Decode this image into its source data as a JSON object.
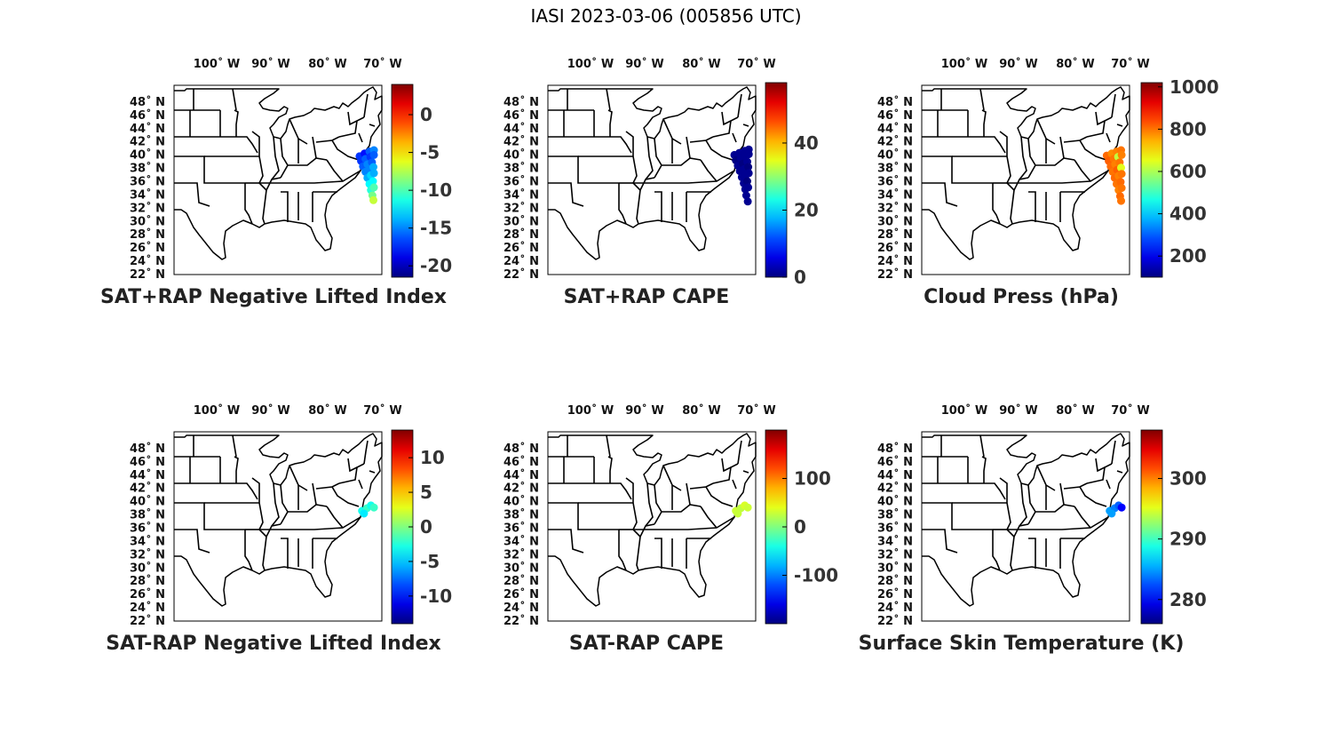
{
  "figure_title": "IASI 2023-03-06 (005856 UTC)",
  "lon_ticks": [
    "100",
    "90",
    "80",
    "70"
  ],
  "lon_suffix": "W",
  "lat_ticks": [
    "48",
    "46",
    "44",
    "42",
    "40",
    "38",
    "36",
    "34",
    "32",
    "30",
    "28",
    "26",
    "24",
    "22"
  ],
  "lat_suffix": "N",
  "colormap": "jet",
  "chart_data": [
    {
      "type": "scatter",
      "title": "SAT+RAP Negative Lifted Index",
      "colorbar": {
        "range": [
          -21.5,
          4
        ],
        "ticks": [
          0,
          -5,
          -10,
          -15,
          -20
        ]
      },
      "points": [
        {
          "lon": -72.5,
          "lat": 39.5,
          "value": -17
        },
        {
          "lon": -71.5,
          "lat": 39.9,
          "value": -18
        },
        {
          "lon": -70.5,
          "lat": 40.2,
          "value": -16
        },
        {
          "lon": -69.6,
          "lat": 40.4,
          "value": -15
        },
        {
          "lon": -72.2,
          "lat": 38.8,
          "value": -17
        },
        {
          "lon": -71.3,
          "lat": 39.1,
          "value": -16
        },
        {
          "lon": -70.3,
          "lat": 39.4,
          "value": -17
        },
        {
          "lon": -69.6,
          "lat": 39.7,
          "value": -16
        },
        {
          "lon": -71.8,
          "lat": 38.0,
          "value": -16
        },
        {
          "lon": -70.9,
          "lat": 38.3,
          "value": -15
        },
        {
          "lon": -70.0,
          "lat": 38.6,
          "value": -16
        },
        {
          "lon": -71.3,
          "lat": 37.2,
          "value": -15
        },
        {
          "lon": -70.5,
          "lat": 37.5,
          "value": -15
        },
        {
          "lon": -69.7,
          "lat": 37.9,
          "value": -14
        },
        {
          "lon": -70.9,
          "lat": 36.3,
          "value": -14
        },
        {
          "lon": -70.2,
          "lat": 36.7,
          "value": -13
        },
        {
          "lon": -69.6,
          "lat": 37.0,
          "value": -14
        },
        {
          "lon": -70.5,
          "lat": 35.4,
          "value": -12
        },
        {
          "lon": -69.8,
          "lat": 35.8,
          "value": -12
        },
        {
          "lon": -70.2,
          "lat": 34.5,
          "value": -11
        },
        {
          "lon": -69.6,
          "lat": 34.9,
          "value": -10
        },
        {
          "lon": -69.9,
          "lat": 33.7,
          "value": -9
        },
        {
          "lon": -69.7,
          "lat": 33.0,
          "value": -7
        }
      ]
    },
    {
      "type": "scatter",
      "title": "SAT+RAP CAPE",
      "colorbar": {
        "range": [
          0,
          58
        ],
        "ticks": [
          0,
          20,
          40
        ]
      },
      "points": [
        {
          "lon": -72.3,
          "lat": 39.7,
          "value": 1
        },
        {
          "lon": -71.3,
          "lat": 40.0,
          "value": 1
        },
        {
          "lon": -70.2,
          "lat": 40.3,
          "value": 1
        },
        {
          "lon": -69.4,
          "lat": 40.5,
          "value": 1
        },
        {
          "lon": -72.0,
          "lat": 38.9,
          "value": 0
        },
        {
          "lon": -71.0,
          "lat": 39.2,
          "value": 1
        },
        {
          "lon": -70.0,
          "lat": 39.5,
          "value": 1
        },
        {
          "lon": -69.4,
          "lat": 39.8,
          "value": 1
        },
        {
          "lon": -71.6,
          "lat": 38.1,
          "value": 1
        },
        {
          "lon": -70.6,
          "lat": 38.4,
          "value": 0
        },
        {
          "lon": -69.7,
          "lat": 38.7,
          "value": 1
        },
        {
          "lon": -71.2,
          "lat": 37.3,
          "value": 1
        },
        {
          "lon": -70.3,
          "lat": 37.6,
          "value": 1
        },
        {
          "lon": -69.5,
          "lat": 37.9,
          "value": 0
        },
        {
          "lon": -70.8,
          "lat": 36.4,
          "value": 1
        },
        {
          "lon": -70.0,
          "lat": 36.7,
          "value": 1
        },
        {
          "lon": -69.4,
          "lat": 37.0,
          "value": 1
        },
        {
          "lon": -70.4,
          "lat": 35.5,
          "value": 1
        },
        {
          "lon": -69.7,
          "lat": 35.8,
          "value": 0
        },
        {
          "lon": -70.1,
          "lat": 34.6,
          "value": 1
        },
        {
          "lon": -69.5,
          "lat": 34.9,
          "value": 1
        },
        {
          "lon": -69.9,
          "lat": 33.7,
          "value": 1
        },
        {
          "lon": -69.6,
          "lat": 32.8,
          "value": 1
        }
      ]
    },
    {
      "type": "scatter",
      "title": "Cloud Press (hPa)",
      "colorbar": {
        "range": [
          100,
          1020
        ],
        "ticks": [
          1000,
          800,
          600,
          400,
          200
        ]
      },
      "points": [
        {
          "lon": -72.6,
          "lat": 39.6,
          "value": 810
        },
        {
          "lon": -71.6,
          "lat": 39.9,
          "value": 780
        },
        {
          "lon": -70.6,
          "lat": 40.2,
          "value": 790
        },
        {
          "lon": -69.7,
          "lat": 40.4,
          "value": 800
        },
        {
          "lon": -72.2,
          "lat": 38.8,
          "value": 820
        },
        {
          "lon": -71.2,
          "lat": 39.1,
          "value": 800
        },
        {
          "lon": -70.3,
          "lat": 39.4,
          "value": 620
        },
        {
          "lon": -69.6,
          "lat": 39.7,
          "value": 790
        },
        {
          "lon": -71.8,
          "lat": 38.0,
          "value": 810
        },
        {
          "lon": -70.9,
          "lat": 38.3,
          "value": 790
        },
        {
          "lon": -70.0,
          "lat": 38.6,
          "value": 800
        },
        {
          "lon": -71.4,
          "lat": 37.2,
          "value": 800
        },
        {
          "lon": -70.5,
          "lat": 37.5,
          "value": 820
        },
        {
          "lon": -69.7,
          "lat": 37.8,
          "value": 650
        },
        {
          "lon": -71.0,
          "lat": 36.3,
          "value": 810
        },
        {
          "lon": -70.2,
          "lat": 36.6,
          "value": 790
        },
        {
          "lon": -69.6,
          "lat": 36.9,
          "value": 800
        },
        {
          "lon": -70.6,
          "lat": 35.4,
          "value": 800
        },
        {
          "lon": -69.8,
          "lat": 35.7,
          "value": 810
        },
        {
          "lon": -70.2,
          "lat": 34.5,
          "value": 790
        },
        {
          "lon": -69.6,
          "lat": 34.8,
          "value": 800
        },
        {
          "lon": -69.9,
          "lat": 33.6,
          "value": 810
        },
        {
          "lon": -69.7,
          "lat": 32.9,
          "value": 800
        }
      ]
    },
    {
      "type": "scatter",
      "title": "SAT-RAP Negative Lifted Index",
      "colorbar": {
        "range": [
          -14,
          14
        ],
        "ticks": [
          10,
          5,
          0,
          -5,
          -10
        ]
      },
      "points": [
        {
          "lon": -72.0,
          "lat": 38.3,
          "value": -3
        },
        {
          "lon": -71.0,
          "lat": 38.7,
          "value": -2
        },
        {
          "lon": -70.2,
          "lat": 39.1,
          "value": -3
        },
        {
          "lon": -69.6,
          "lat": 38.8,
          "value": -2
        },
        {
          "lon": -71.6,
          "lat": 37.9,
          "value": -4
        }
      ]
    },
    {
      "type": "scatter",
      "title": "SAT-RAP CAPE",
      "colorbar": {
        "range": [
          -200,
          200
        ],
        "ticks": [
          100,
          0,
          -100
        ]
      },
      "points": [
        {
          "lon": -72.0,
          "lat": 38.3,
          "value": 30
        },
        {
          "lon": -71.0,
          "lat": 38.7,
          "value": 25
        },
        {
          "lon": -70.2,
          "lat": 39.1,
          "value": 35
        },
        {
          "lon": -69.6,
          "lat": 38.8,
          "value": 30
        },
        {
          "lon": -71.6,
          "lat": 37.9,
          "value": 28
        }
      ]
    },
    {
      "type": "scatter",
      "title": "Surface Skin Temperature (K)",
      "colorbar": {
        "range": [
          276,
          308
        ],
        "ticks": [
          300,
          290,
          280
        ]
      },
      "points": [
        {
          "lon": -72.0,
          "lat": 38.3,
          "value": 285
        },
        {
          "lon": -71.0,
          "lat": 38.7,
          "value": 284
        },
        {
          "lon": -70.2,
          "lat": 39.1,
          "value": 283
        },
        {
          "lon": -69.6,
          "lat": 38.8,
          "value": 280
        },
        {
          "lon": -71.6,
          "lat": 37.9,
          "value": 285
        }
      ]
    }
  ]
}
